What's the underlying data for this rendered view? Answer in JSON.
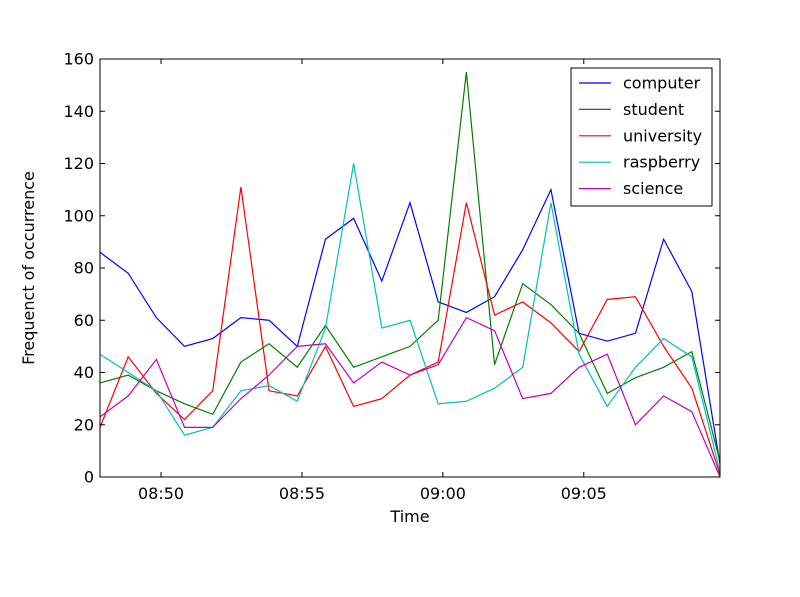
{
  "chart_data": {
    "type": "line",
    "xlabel": "Time",
    "ylabel": "Frequenct of occurrence",
    "ylim": [
      0,
      160
    ],
    "yticks": [
      0,
      20,
      40,
      60,
      80,
      100,
      120,
      140,
      160
    ],
    "xlim": [
      "08:47:50",
      "09:09:50"
    ],
    "xticks": [
      "08:50",
      "08:55",
      "09:00",
      "09:05"
    ],
    "x": [
      "08:47:50",
      "08:48:50",
      "08:49:50",
      "08:50:50",
      "08:51:50",
      "08:52:50",
      "08:53:50",
      "08:54:50",
      "08:55:50",
      "08:56:50",
      "08:57:50",
      "08:58:50",
      "08:59:50",
      "09:00:50",
      "09:01:50",
      "09:02:50",
      "09:03:50",
      "09:04:50",
      "09:05:50",
      "09:06:50",
      "09:07:50",
      "09:08:50",
      "09:09:50"
    ],
    "legend_position": "top-right",
    "grid": false,
    "series": [
      {
        "name": "computer",
        "color": "#0000ff",
        "values": [
          86,
          78,
          61,
          50,
          53,
          61,
          60,
          50,
          91,
          99,
          75,
          105,
          67,
          63,
          69,
          87,
          110,
          55,
          52,
          55,
          91,
          71,
          5
        ]
      },
      {
        "name": "student",
        "color": "#008000",
        "values": [
          36,
          39,
          33,
          28,
          24,
          44,
          51,
          42,
          58,
          42,
          46,
          50,
          60,
          155,
          43,
          74,
          66,
          55,
          32,
          38,
          42,
          48,
          6
        ]
      },
      {
        "name": "university",
        "color": "#ff0000",
        "values": [
          19,
          46,
          32,
          22,
          33,
          111,
          33,
          31,
          50,
          27,
          30,
          39,
          44,
          105,
          62,
          67,
          59,
          48,
          68,
          69,
          50,
          34,
          1
        ]
      },
      {
        "name": "raspberry",
        "color": "#00bfbf",
        "values": [
          47,
          40,
          33,
          16,
          19,
          33,
          35,
          29,
          57,
          120,
          57,
          60,
          28,
          29,
          34,
          42,
          105,
          47,
          27,
          42,
          53,
          46,
          2
        ]
      },
      {
        "name": "science",
        "color": "#bf00bf",
        "values": [
          23,
          31,
          45,
          19,
          19,
          30,
          39,
          50,
          51,
          36,
          44,
          39,
          43,
          61,
          56,
          30,
          32,
          42,
          47,
          20,
          31,
          25,
          0
        ]
      }
    ]
  }
}
